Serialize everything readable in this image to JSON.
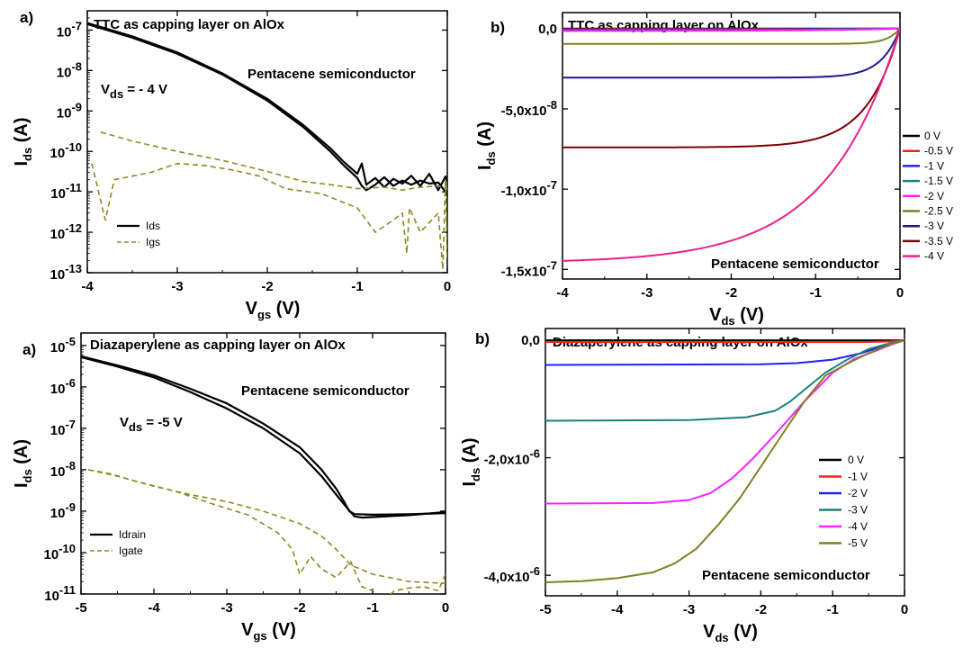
{
  "chart_data": [
    {
      "type": "line",
      "panel_label": "a)",
      "title": "TTC as capping layer on AlOx",
      "annotations": {
        "semiconductor": "Pentacene semiconductor",
        "vds_main": "V",
        "vds_sub": "ds",
        "vds_value": "= - 4 V"
      },
      "xlabel": {
        "main": "V",
        "sub": "gs",
        "unit": "(V)"
      },
      "ylabel": {
        "main": "I",
        "sub": "ds",
        "unit": "(A)"
      },
      "xlim": [
        -4,
        0
      ],
      "ylim": [
        1e-13,
        3e-07
      ],
      "yscale": "log",
      "x_ticks": [
        -4,
        -3,
        -2,
        -1,
        0
      ],
      "y_ticks": [
        {
          "v": 1e-07,
          "m": "10",
          "e": "-7"
        },
        {
          "v": 1e-08,
          "m": "10",
          "e": "-8"
        },
        {
          "v": 1e-09,
          "m": "10",
          "e": "-9"
        },
        {
          "v": 1e-10,
          "m": "10",
          "e": "-10"
        },
        {
          "v": 1e-11,
          "m": "10",
          "e": "-11"
        },
        {
          "v": 1e-12,
          "m": "10",
          "e": "-12"
        },
        {
          "v": 1e-13,
          "m": "10",
          "e": "-13"
        }
      ],
      "legend_position": "bottom-left",
      "series": [
        {
          "name": "Ids",
          "color": "#000000",
          "style": "solid",
          "width": 2.2,
          "x": [
            -4.0,
            -3.5,
            -3.0,
            -2.5,
            -2.0,
            -1.6,
            -1.3,
            -1.15,
            -1.05,
            -1.0,
            -0.95,
            -0.9,
            -0.8,
            -0.7,
            -0.6,
            -0.5,
            -0.4,
            -0.3,
            -0.2,
            -0.1,
            -0.02,
            0.0
          ],
          "y": [
            1.5e-07,
            7e-08,
            2.8e-08,
            8.5e-09,
            2e-09,
            4.5e-10,
            1.2e-10,
            5.5e-11,
            3.5e-11,
            2.8e-11,
            5e-11,
            1.5e-11,
            2.2e-11,
            1.3e-11,
            2.1e-11,
            1.6e-11,
            2.5e-11,
            1.4e-11,
            2.8e-11,
            1.1e-11,
            2.4e-11,
            1.8e-11
          ]
        },
        {
          "name": "",
          "color": "#000000",
          "style": "solid",
          "width": 2.2,
          "x": [
            -4.0,
            -3.5,
            -3.0,
            -2.5,
            -2.0,
            -1.6,
            -1.3,
            -1.15,
            -1.05,
            -1.0,
            -0.95,
            -0.9,
            -0.8,
            -0.7,
            -0.6,
            -0.5,
            -0.4,
            -0.3,
            -0.2,
            -0.1,
            -0.02,
            0.0
          ],
          "y": [
            1.4e-07,
            6.5e-08,
            2.6e-08,
            8e-09,
            1.8e-09,
            4e-10,
            1e-10,
            4.5e-11,
            2.8e-11,
            2.2e-11,
            1.4e-11,
            1.1e-11,
            1.5e-11,
            2.3e-11,
            1.4e-11,
            1.9e-11,
            1.5e-11,
            1.9e-11,
            1.6e-11,
            1.7e-11,
            1e-11,
            8e-12
          ]
        },
        {
          "name": "Igs",
          "color": "#8b8b1f",
          "style": "dashed",
          "width": 1.6,
          "x": [
            -3.85,
            -3.5,
            -3.0,
            -2.5,
            -2.0,
            -1.6,
            -1.3,
            -1.0,
            -0.7,
            -0.5,
            -0.3,
            -0.1,
            0.0
          ],
          "y": [
            3e-10,
            1.8e-10,
            1e-10,
            6e-11,
            3.2e-11,
            1.8e-11,
            1.5e-11,
            1.2e-11,
            1.3e-11,
            1.1e-11,
            1.3e-11,
            1.4e-11,
            1.2e-11
          ]
        },
        {
          "name": "",
          "color": "#8b8b1f",
          "style": "dashed",
          "width": 1.6,
          "x": [
            -3.95,
            -3.8,
            -3.7,
            -3.3,
            -3.0,
            -2.7,
            -2.4,
            -2.1,
            -1.8,
            -1.4,
            -1.0,
            -0.8,
            -0.6,
            -0.5,
            -0.45,
            -0.42,
            -0.3,
            -0.1,
            -0.05,
            -0.02,
            0.0
          ],
          "y": [
            5e-11,
            2e-12,
            2e-11,
            3e-11,
            5e-11,
            4.5e-11,
            3.5e-11,
            2.5e-11,
            1.2e-11,
            9e-12,
            4e-12,
            1e-12,
            2e-12,
            3e-12,
            3e-13,
            4e-12,
            1e-12,
            3e-12,
            1.2e-13,
            2e-11,
            2e-13
          ]
        }
      ]
    },
    {
      "type": "line",
      "panel_label": "b)",
      "title": "TTC as capping layer on AlOx",
      "annotations": {
        "semiconductor": "Pentacene semiconductor"
      },
      "xlabel": {
        "main": "V",
        "sub": "ds",
        "unit": "(V)"
      },
      "ylabel": {
        "main": "I",
        "sub": "ds",
        "unit": "(A)"
      },
      "xlim": [
        -4,
        0
      ],
      "ylim": [
        -1.56e-07,
        1e-08
      ],
      "yscale": "linear",
      "x_ticks": [
        -4,
        -3,
        -2,
        -1,
        0
      ],
      "y_ticks": [
        {
          "v": 0,
          "m": "0,0"
        },
        {
          "v": -5e-08,
          "m": "-5,0x10",
          "e": "-8"
        },
        {
          "v": -1e-07,
          "m": "-1,0x10",
          "e": "-7"
        },
        {
          "v": -1.5e-07,
          "m": "-1,5x10",
          "e": "-7"
        }
      ],
      "legend_position": "right, outside plot",
      "series": [
        {
          "name": "0 V",
          "color": "#000000",
          "sat": 0,
          "k": 1
        },
        {
          "name": "-0.5 V",
          "color": "#ff2020",
          "sat": -3e-10,
          "k": 1
        },
        {
          "name": "-1 V",
          "color": "#2020ff",
          "sat": -6e-10,
          "k": 1
        },
        {
          "name": "-1.5 V",
          "color": "#1e8080",
          "sat": -1e-09,
          "k": 1
        },
        {
          "name": "-2 V",
          "color": "#ff20ff",
          "sat": -1.5e-09,
          "k": 1
        },
        {
          "name": "-2.5 V",
          "color": "#808020",
          "sat": -9.5e-09,
          "k": 0.15
        },
        {
          "name": "-3 V",
          "color": "#1a1a8a",
          "sat": -3.05e-08,
          "k": 0.22
        },
        {
          "name": "-3.5 V",
          "color": "#800000",
          "sat": -7.4e-08,
          "k": 0.38
        },
        {
          "name": "-4 V",
          "color": "#ee1e8c",
          "sat": -1.46e-07,
          "k": 0.85
        }
      ]
    },
    {
      "type": "line",
      "panel_label": "a)",
      "title": "Diazaperylene as capping layer on AlOx",
      "annotations": {
        "semiconductor": "Pentacene semiconductor",
        "vds_main": "V",
        "vds_sub": "ds",
        "vds_value": "= -5 V"
      },
      "xlabel": {
        "main": "V",
        "sub": "gs",
        "unit": "(V)"
      },
      "ylabel": {
        "main": "I",
        "sub": "ds",
        "unit": "(A)"
      },
      "xlim": [
        -5,
        0
      ],
      "ylim": [
        1e-11,
        2e-05
      ],
      "yscale": "log",
      "x_ticks": [
        -5,
        -4,
        -3,
        -2,
        -1,
        0
      ],
      "y_ticks": [
        {
          "v": 1e-05,
          "m": "10",
          "e": "-5"
        },
        {
          "v": 1e-06,
          "m": "10",
          "e": "-6"
        },
        {
          "v": 1e-07,
          "m": "10",
          "e": "-7"
        },
        {
          "v": 1e-08,
          "m": "10",
          "e": "-8"
        },
        {
          "v": 1e-09,
          "m": "10",
          "e": "-9"
        },
        {
          "v": 1e-10,
          "m": "10",
          "e": "-10"
        },
        {
          "v": 1e-11,
          "m": "10",
          "e": "-11"
        }
      ],
      "legend_position": "bottom-left",
      "series": [
        {
          "name": "Idrain",
          "color": "#000000",
          "style": "solid",
          "width": 2.2,
          "x": [
            -5.0,
            -4.5,
            -4.0,
            -3.5,
            -3.0,
            -2.5,
            -2.0,
            -1.7,
            -1.5,
            -1.4,
            -1.32,
            -1.25,
            -1.0,
            -0.5,
            0.0
          ],
          "y": [
            5.5e-06,
            3.3e-06,
            1.9e-06,
            9e-07,
            4e-07,
            1.3e-07,
            3.5e-08,
            1e-08,
            3.5e-09,
            1.8e-09,
            1e-09,
            8.5e-10,
            8.2e-10,
            8.4e-10,
            9e-10
          ]
        },
        {
          "name": "",
          "color": "#000000",
          "style": "solid",
          "width": 2.2,
          "x": [
            -5.0,
            -4.5,
            -4.0,
            -3.5,
            -3.0,
            -2.5,
            -2.0,
            -1.7,
            -1.5,
            -1.35,
            -1.25,
            -1.15,
            -1.0,
            -0.5,
            0.0
          ],
          "y": [
            5.2e-06,
            3.1e-06,
            1.7e-06,
            7.5e-07,
            3e-07,
            1e-07,
            2.5e-08,
            7e-09,
            2.5e-09,
            1.2e-09,
            7.5e-10,
            7e-10,
            7.2e-10,
            8e-10,
            9.5e-10
          ]
        },
        {
          "name": "Igate",
          "color": "#8b8b1f",
          "style": "dashed",
          "width": 1.6,
          "x": [
            -4.9,
            -4.5,
            -4.0,
            -3.5,
            -3.0,
            -2.5,
            -2.0,
            -1.7,
            -1.5,
            -1.3,
            -1.0,
            -0.5,
            0.0
          ],
          "y": [
            1e-08,
            7e-09,
            4e-09,
            2.5e-09,
            1.7e-09,
            1e-09,
            5e-10,
            2.5e-10,
            1.2e-10,
            5e-11,
            3e-11,
            2e-11,
            1.8e-11
          ]
        },
        {
          "name": "",
          "color": "#8b8b1f",
          "style": "dashed",
          "width": 1.6,
          "x": [
            -4.9,
            -4.6,
            -4.2,
            -3.7,
            -3.2,
            -2.7,
            -2.3,
            -2.1,
            -2.0,
            -1.85,
            -1.7,
            -1.5,
            -1.3,
            -1.15,
            -1.0,
            -0.85,
            -0.7,
            -0.5,
            -0.3,
            -0.1,
            0.0
          ],
          "y": [
            1e-08,
            8e-09,
            5e-09,
            3e-09,
            1.5e-09,
            8e-10,
            3e-10,
            1.2e-10,
            3e-11,
            8e-11,
            4e-11,
            2.5e-11,
            6e-11,
            1.5e-11,
            1.2e-11,
            5e-12,
            1.2e-11,
            1.4e-11,
            1.5e-11,
            1.2e-11,
            3e-11
          ]
        }
      ]
    },
    {
      "type": "line",
      "panel_label": "b)",
      "title": "Diazaperylene as capping layer on AlOx",
      "annotations": {
        "semiconductor": "Pentacene semiconductor"
      },
      "xlabel": {
        "main": "V",
        "sub": "ds",
        "unit": "(V)"
      },
      "ylabel": {
        "main": "I",
        "sub": "ds",
        "unit": "(A)"
      },
      "xlim": [
        -5,
        0
      ],
      "ylim": [
        -4.35e-06,
        2e-07
      ],
      "yscale": "linear",
      "x_ticks": [
        -5,
        -4,
        -3,
        -2,
        -1,
        0
      ],
      "y_ticks": [
        {
          "v": 0,
          "m": "0,0"
        },
        {
          "v": -2e-06,
          "m": "-2,0x10",
          "e": "-6"
        },
        {
          "v": -4e-06,
          "m": "-4,0x10",
          "e": "-6"
        }
      ],
      "legend_position": "right, inside plot",
      "series": [
        {
          "name": "0 V",
          "color": "#000000",
          "sat": 0,
          "k": 2,
          "x": [
            -5,
            0
          ],
          "y": [
            0,
            0
          ]
        },
        {
          "name": "-1 V",
          "color": "#ff2020",
          "sat": -3e-08,
          "k": 2,
          "x": [
            -5,
            -0.5,
            -0.2,
            0
          ],
          "y": [
            -3e-08,
            -3e-08,
            -2e-08,
            0
          ]
        },
        {
          "name": "-2 V",
          "color": "#2020ff",
          "sat": -4.2e-07,
          "k": 1,
          "x": [
            -5,
            -2.0,
            -1.5,
            -1.0,
            -0.6,
            -0.3,
            0
          ],
          "y": [
            -4.2e-07,
            -4.1e-07,
            -3.9e-07,
            -3.3e-07,
            -2.2e-07,
            -1e-07,
            0
          ]
        },
        {
          "name": "-3 V",
          "color": "#1e8080",
          "sat": -1.37e-06,
          "k": 1,
          "x": [
            -5,
            -3.0,
            -2.2,
            -1.8,
            -1.6,
            -1.4,
            -1.1,
            -0.8,
            -0.5,
            -0.2,
            0
          ],
          "y": [
            -1.37e-06,
            -1.36e-06,
            -1.31e-06,
            -1.2e-06,
            -1.05e-06,
            -8.5e-07,
            -5.5e-07,
            -3.3e-07,
            -1.5e-07,
            -5e-08,
            0
          ]
        },
        {
          "name": "-4 V",
          "color": "#ff20ff",
          "sat": -2.78e-06,
          "k": 1,
          "x": [
            -5,
            -3.5,
            -3.0,
            -2.7,
            -2.4,
            -2.1,
            -1.8,
            -1.4,
            -1.0,
            -0.7,
            -0.4,
            -0.15,
            0
          ],
          "y": [
            -2.78e-06,
            -2.77e-06,
            -2.72e-06,
            -2.6e-06,
            -2.35e-06,
            -2e-06,
            -1.6e-06,
            -1.05e-06,
            -5.5e-07,
            -3.2e-07,
            -1.8e-07,
            -6e-08,
            0
          ]
        },
        {
          "name": "-5 V",
          "color": "#808020",
          "sat": -4.12e-06,
          "k": 1,
          "x": [
            -5,
            -4.5,
            -4.0,
            -3.5,
            -3.2,
            -2.9,
            -2.6,
            -2.3,
            -2.0,
            -1.7,
            -1.4,
            -1.1,
            -0.8,
            -0.5,
            -0.2,
            0
          ],
          "y": [
            -4.12e-06,
            -4.1e-06,
            -4.05e-06,
            -3.95e-06,
            -3.8e-06,
            -3.55e-06,
            -3.15e-06,
            -2.7e-06,
            -2.15e-06,
            -1.6e-06,
            -1.05e-06,
            -6e-07,
            -4e-07,
            -2.2e-07,
            -7e-08,
            0
          ]
        }
      ]
    }
  ]
}
